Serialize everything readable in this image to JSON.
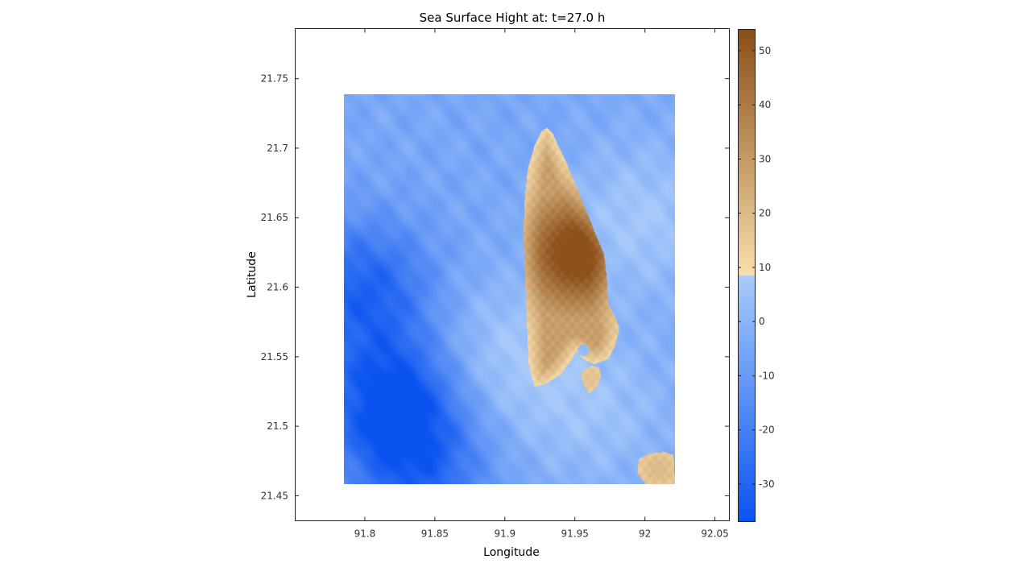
{
  "chart_data": {
    "type": "heatmap",
    "title": "Sea Surface Hight at: t=27.0 h",
    "xlabel": "Longitude",
    "ylabel": "Latitude",
    "xlim": [
      91.75,
      92.06
    ],
    "ylim": [
      21.432,
      21.786
    ],
    "x_ticks": [
      91.8,
      91.85,
      91.9,
      91.95,
      92,
      92.05
    ],
    "x_tick_labels": [
      "91.8",
      "91.85",
      "91.9",
      "91.95",
      "92",
      "92.05"
    ],
    "y_ticks": [
      21.45,
      21.5,
      21.55,
      21.6,
      21.65,
      21.7,
      21.75
    ],
    "y_tick_labels": [
      "21.45",
      "21.5",
      "21.55",
      "21.6",
      "21.65",
      "21.7",
      "21.75"
    ],
    "data_extent": {
      "lon": [
        91.785,
        92.023
      ],
      "lat": [
        21.46,
        21.74
      ]
    },
    "colorbar": {
      "range": [
        -37,
        54
      ],
      "ticks": [
        -30,
        -20,
        -10,
        0,
        10,
        20,
        30,
        40,
        50
      ],
      "tick_labels": [
        "-30",
        "-20",
        "-10",
        "0",
        "10",
        "20",
        "30",
        "40",
        "50"
      ],
      "land_threshold": 8.5,
      "colors": {
        "water_low": "#0a53f0",
        "water_high": "#a9cbfa",
        "land_low": "#f8dfad",
        "land_high": "#8b4e18"
      }
    },
    "features": {
      "main_island_outline": [
        [
          91.931,
          21.716
        ],
        [
          91.935,
          21.712
        ],
        [
          91.939,
          21.703
        ],
        [
          91.944,
          21.693
        ],
        [
          91.949,
          21.681
        ],
        [
          91.955,
          21.667
        ],
        [
          91.961,
          21.652
        ],
        [
          91.967,
          21.637
        ],
        [
          91.972,
          21.625
        ],
        [
          91.974,
          21.608
        ],
        [
          91.975,
          21.59
        ],
        [
          91.98,
          21.58
        ],
        [
          91.983,
          21.572
        ],
        [
          91.98,
          21.56
        ],
        [
          91.975,
          21.55
        ],
        [
          91.965,
          21.546
        ],
        [
          91.957,
          21.55
        ],
        [
          91.952,
          21.555
        ],
        [
          91.947,
          21.547
        ],
        [
          91.94,
          21.538
        ],
        [
          91.93,
          21.532
        ],
        [
          91.922,
          21.53
        ],
        [
          91.918,
          21.545
        ],
        [
          91.917,
          21.565
        ],
        [
          91.916,
          21.59
        ],
        [
          91.915,
          21.615
        ],
        [
          91.914,
          21.64
        ],
        [
          91.915,
          21.665
        ],
        [
          91.917,
          21.685
        ],
        [
          91.922,
          21.703
        ],
        [
          91.927,
          21.713
        ]
      ],
      "small_island_outline": [
        [
          91.963,
          21.545
        ],
        [
          91.968,
          21.544
        ],
        [
          91.97,
          21.538
        ],
        [
          91.967,
          21.53
        ],
        [
          91.961,
          21.525
        ],
        [
          91.957,
          21.532
        ],
        [
          91.955,
          21.54
        ]
      ],
      "se_island_outline": [
        [
          91.997,
          21.478
        ],
        [
          92.005,
          21.482
        ],
        [
          92.015,
          21.483
        ],
        [
          92.022,
          21.481
        ],
        [
          92.023,
          21.46
        ],
        [
          92.002,
          21.46
        ],
        [
          91.996,
          21.468
        ]
      ],
      "bay": {
        "lon": 91.957,
        "lat": 21.556
      },
      "peak": {
        "lon": 91.954,
        "lat": 21.626,
        "value": 53
      },
      "deep_spots": [
        {
          "lon": 91.82,
          "lat": 21.52,
          "value": -37
        },
        {
          "lon": 91.8,
          "lat": 21.6,
          "value": -30
        },
        {
          "lon": 91.84,
          "lat": 21.47,
          "value": -26
        }
      ],
      "shallow_spots": [
        {
          "lon": 91.9,
          "lat": 21.55,
          "value": 7
        },
        {
          "lon": 91.97,
          "lat": 21.51,
          "value": 4
        },
        {
          "lon": 92.0,
          "lat": 21.65,
          "value": 7
        }
      ],
      "water_base": -5
    }
  }
}
